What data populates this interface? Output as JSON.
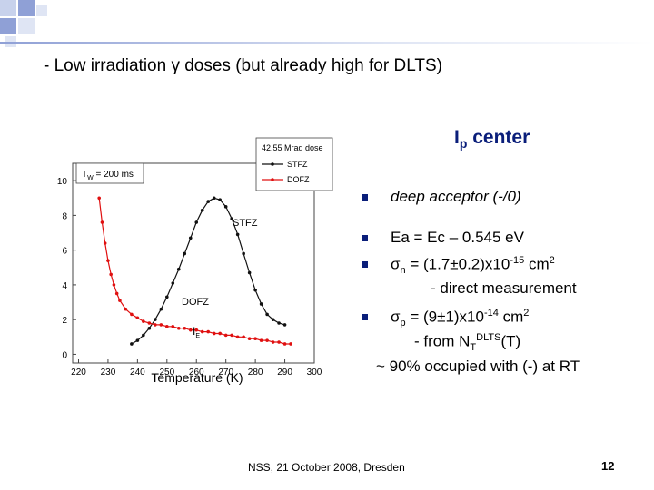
{
  "slide": {
    "title": "- Low irradiation γ doses (but already high for DLTS)",
    "center_label_main": "I",
    "center_label_sub": "p",
    "center_label_rest": " center",
    "footer": "NSS, 21 October 2008, Dresden",
    "page_number": "12"
  },
  "bullets": {
    "b1_text": "deep acceptor (-/0)",
    "b2_text": "Ea = Ec – 0.545 eV",
    "b3_sym": "σ",
    "b3_sub": "n",
    "b3_mid": " = (1.7±0.2)x10",
    "b3_sup": "-15",
    "b3_end": " cm",
    "b3_sup2": "2",
    "b3_line2": "- direct measurement",
    "b4_sym": "σ",
    "b4_sub": "p",
    "b4_mid": " = (9±1)x10",
    "b4_sup": "-14",
    "b4_end": " cm",
    "b4_sup2": "2",
    "b4_line2_a": "- from N",
    "b4_line2_sub": "T",
    "b4_line2_sup": "DLTS",
    "b4_line2_b": "(T)",
    "b4_line3": "~ 90% occupied with (-) at RT"
  },
  "colors": {
    "accent": "#0a1e7a",
    "series_stfz": "#111111",
    "series_dofz": "#e01010",
    "deco_light": "#c8d2ec",
    "deco_mid": "#8fa0d6"
  },
  "chart_data": {
    "type": "scatter",
    "xlabel": "Temperature (K)",
    "ylabel": "",
    "xlim": [
      218,
      300
    ],
    "ylim": [
      -0.5,
      11
    ],
    "x_ticks": [
      "220",
      "230",
      "240",
      "250",
      "260",
      "270",
      "280",
      "290",
      "300"
    ],
    "y_ticks": [
      "0",
      "2",
      "4",
      "6",
      "8",
      "10"
    ],
    "legend_title": "42.55 Mrad dose",
    "legend_position": "top-right",
    "inset_label": "T",
    "inset_label_sub": "W",
    "inset_label_rest": " = 200 ms",
    "label_stfz": "STFZ",
    "label_dofz": "DOFZ",
    "peak_label": "I",
    "peak_label_sub": "E",
    "series": [
      {
        "name": "STFZ",
        "x": [
          238,
          240,
          242,
          244,
          246,
          248,
          250,
          252,
          254,
          256,
          258,
          260,
          262,
          264,
          266,
          268,
          270,
          272,
          274,
          276,
          278,
          280,
          282,
          284,
          286,
          288,
          290
        ],
        "y": [
          0.6,
          0.8,
          1.1,
          1.5,
          2.0,
          2.6,
          3.3,
          4.1,
          4.9,
          5.8,
          6.7,
          7.6,
          8.3,
          8.8,
          9.0,
          8.9,
          8.5,
          7.8,
          6.9,
          5.8,
          4.7,
          3.7,
          2.9,
          2.3,
          2.0,
          1.8,
          1.7
        ]
      },
      {
        "name": "DOFZ",
        "x": [
          227,
          228,
          229,
          230,
          231,
          232,
          233,
          234,
          236,
          238,
          240,
          242,
          244,
          246,
          248,
          250,
          252,
          254,
          256,
          258,
          260,
          262,
          264,
          266,
          268,
          270,
          272,
          274,
          276,
          278,
          280,
          282,
          284,
          286,
          288,
          290,
          292
        ],
        "y": [
          9.0,
          7.6,
          6.4,
          5.4,
          4.6,
          4.0,
          3.5,
          3.1,
          2.6,
          2.3,
          2.1,
          1.9,
          1.8,
          1.7,
          1.7,
          1.6,
          1.6,
          1.5,
          1.5,
          1.4,
          1.4,
          1.3,
          1.3,
          1.2,
          1.2,
          1.1,
          1.1,
          1.0,
          1.0,
          0.9,
          0.9,
          0.8,
          0.8,
          0.7,
          0.7,
          0.6,
          0.6
        ]
      }
    ]
  }
}
